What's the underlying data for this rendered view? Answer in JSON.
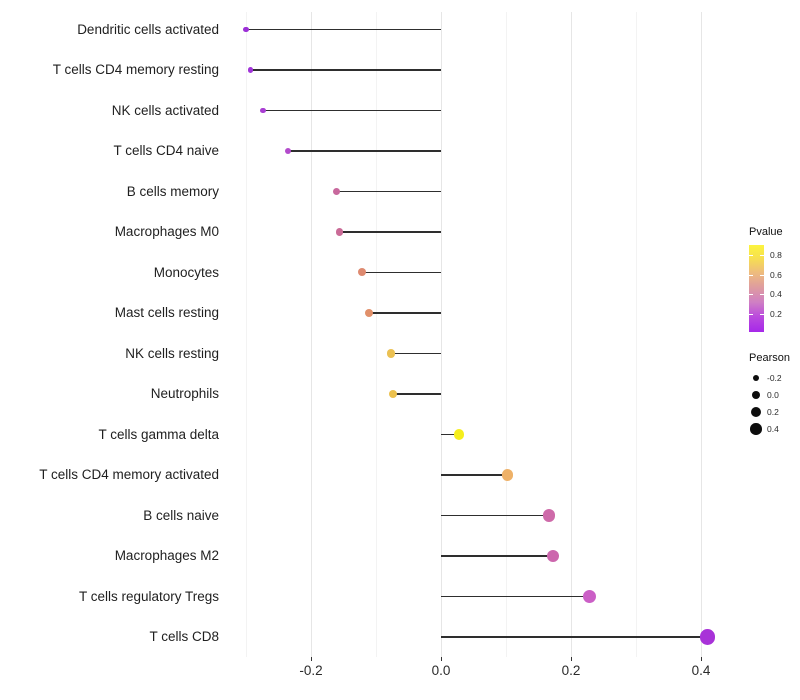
{
  "chart_data": {
    "type": "lollipop",
    "title": "",
    "xlabel": "",
    "ylabel": "",
    "x_tick_labels": [
      "-0.2",
      "0.0",
      "0.2",
      "0.4"
    ],
    "x_tick_values": [
      -0.2,
      0.0,
      0.2,
      0.4
    ],
    "x_minor_grid_values": [
      -0.3,
      -0.1,
      0.1,
      0.3
    ],
    "xlim": [
      -0.332,
      0.449
    ],
    "grid": "vertical-only",
    "baseline": 0.0,
    "rows": [
      {
        "label": "Dendritic cells activated",
        "pearson": -0.3,
        "pvalue": 0.1,
        "color": "#9c2fd7"
      },
      {
        "label": "T cells CD4 memory resting",
        "pearson": -0.293,
        "pvalue": 0.11,
        "color": "#a134d9"
      },
      {
        "label": "NK cells activated",
        "pearson": -0.274,
        "pvalue": 0.14,
        "color": "#a93ed3"
      },
      {
        "label": "T cells CD4 naive",
        "pearson": -0.235,
        "pvalue": 0.2,
        "color": "#b34bcc"
      },
      {
        "label": "B cells memory",
        "pearson": -0.161,
        "pvalue": 0.42,
        "color": "#c8689d"
      },
      {
        "label": "Macrophages M0",
        "pearson": -0.156,
        "pvalue": 0.43,
        "color": "#ca6b97"
      },
      {
        "label": "Monocytes",
        "pearson": -0.121,
        "pvalue": 0.55,
        "color": "#de8a70"
      },
      {
        "label": "Mast cells resting",
        "pearson": -0.111,
        "pvalue": 0.57,
        "color": "#e1906a"
      },
      {
        "label": "NK cells resting",
        "pearson": -0.077,
        "pvalue": 0.69,
        "color": "#ebc153"
      },
      {
        "label": "Neutrophils",
        "pearson": -0.074,
        "pvalue": 0.7,
        "color": "#ecc14e"
      },
      {
        "label": "T cells gamma delta",
        "pearson": 0.028,
        "pvalue": 0.88,
        "color": "#f5ee1c"
      },
      {
        "label": "T cells CD4 memory activated",
        "pearson": 0.102,
        "pvalue": 0.62,
        "color": "#eeb168"
      },
      {
        "label": "B cells naive",
        "pearson": 0.166,
        "pvalue": 0.38,
        "color": "#ce6aa9"
      },
      {
        "label": "Macrophages M2",
        "pearson": 0.172,
        "pvalue": 0.36,
        "color": "#cc66ad"
      },
      {
        "label": "T cells regulatory  Tregs",
        "pearson": 0.228,
        "pvalue": 0.28,
        "color": "#cb5fc6"
      },
      {
        "label": "T cells CD8",
        "pearson": 0.41,
        "pvalue": 0.06,
        "color": "#a832d8"
      }
    ],
    "legend_pvalue": {
      "title": "Pvalue",
      "tick_labels": [
        "0.8",
        "0.6",
        "0.4",
        "0.2"
      ],
      "tick_values": [
        0.8,
        0.6,
        0.4,
        0.2
      ],
      "gradient_stops": [
        {
          "pos": 0,
          "color": "#fcf43e"
        },
        {
          "pos": 14,
          "color": "#f7e14e"
        },
        {
          "pos": 32,
          "color": "#eebb7e"
        },
        {
          "pos": 50,
          "color": "#dd9aa2"
        },
        {
          "pos": 66,
          "color": "#cf7fc4"
        },
        {
          "pos": 82,
          "color": "#bb4bdd"
        },
        {
          "pos": 100,
          "color": "#a628e9"
        }
      ]
    },
    "legend_pearson": {
      "title": "Pearson",
      "items": [
        {
          "label": "-0.2",
          "value": -0.2,
          "radius": 3.2
        },
        {
          "label": "0.0",
          "value": 0.0,
          "radius": 4.3
        },
        {
          "label": "0.2",
          "value": 0.2,
          "radius": 5.1
        },
        {
          "label": "0.4",
          "value": 0.4,
          "radius": 5.8
        }
      ]
    },
    "stem_color": "#2e2e2e",
    "background": "#ffffff"
  }
}
